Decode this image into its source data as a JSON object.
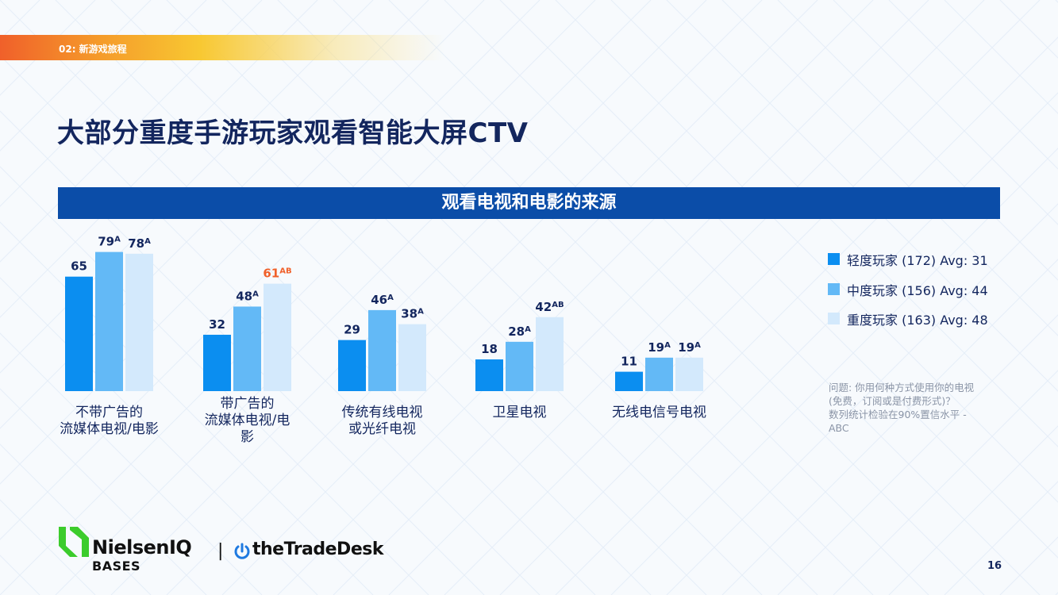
{
  "section_tag": "02: 新游戏旅程",
  "page_title": "大部分重度手游玩家观看智能大屏CTV",
  "chart_header": "观看电视和电影的来源",
  "legend": {
    "items": [
      {
        "label": "轻度玩家 (172) Avg: 31"
      },
      {
        "label": "中度玩家 (156) Avg: 44"
      },
      {
        "label": "重度玩家 (163) Avg: 48"
      }
    ]
  },
  "note": {
    "lines": [
      "问题: 你用何种方式使用你的电视",
      "(免费，订阅或是付费形式)？",
      "数列统计检验在90%置信水平 -",
      "ABC"
    ]
  },
  "logos": {
    "nielsen": "NielsenIQ",
    "bases": "BASES",
    "divider": "|",
    "tradedesk": "theTradeDesk"
  },
  "page_number": "16",
  "colors": {
    "light_series": "#0b8ef0",
    "medium_series": "#63b9f6",
    "heavy_series": "#d3e9fc",
    "header_bg": "#0b4da8",
    "title": "#13265e",
    "highlight": "#f0602a"
  },
  "chart_data": {
    "type": "bar",
    "categories": [
      [
        "不带广告的",
        "流媒体电视/电影"
      ],
      [
        "带广告的",
        "流媒体电视/电",
        "影"
      ],
      [
        "传统有线电视",
        "或光纤电视"
      ],
      [
        "卫星电视"
      ],
      [
        "无线电信号电视"
      ]
    ],
    "series": [
      {
        "name": "轻度玩家",
        "values": [
          65,
          32,
          29,
          18,
          11
        ],
        "sig": [
          "",
          "",
          "",
          "",
          ""
        ]
      },
      {
        "name": "中度玩家",
        "values": [
          79,
          48,
          46,
          28,
          19
        ],
        "sig": [
          "A",
          "A",
          "A",
          "A",
          "A"
        ]
      },
      {
        "name": "重度玩家",
        "values": [
          78,
          61,
          38,
          42,
          19
        ],
        "sig": [
          "A",
          "AB",
          "A",
          "AB",
          "A"
        ]
      }
    ],
    "highlight": [
      {
        "series": 2,
        "index": 1
      }
    ],
    "ylim": [
      0,
      80
    ],
    "grid": false,
    "legend_position": "right"
  }
}
